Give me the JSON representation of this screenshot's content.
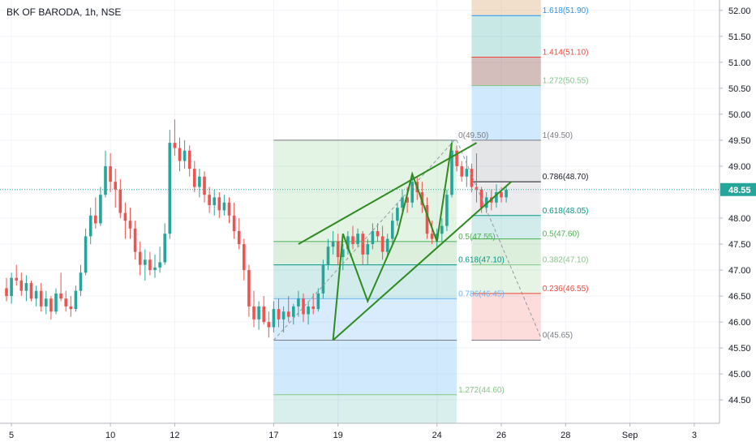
{
  "header": {
    "symbol_title": "BK OF BARODA, 1h, NSE"
  },
  "chart_data": {
    "type": "candlestick",
    "title": "BK OF BARODA, 1h, NSE",
    "y_axis": {
      "ylim": [
        44.05,
        52.2
      ],
      "ticks": [
        "52.00",
        "51.50",
        "51.00",
        "50.50",
        "50.00",
        "49.50",
        "49.00",
        "48.50",
        "48.00",
        "47.50",
        "47.00",
        "46.50",
        "46.00",
        "45.50",
        "45.00",
        "44.50"
      ],
      "current_price": "48.55",
      "current_price_color": "#26a69a"
    },
    "x_axis": {
      "xlim": [
        0,
        148
      ],
      "ticks": [
        {
          "label": "5",
          "x": 1
        },
        {
          "label": "10",
          "x": 21
        },
        {
          "label": "12",
          "x": 34
        },
        {
          "label": "17",
          "x": 54
        },
        {
          "label": "19",
          "x": 67
        },
        {
          "label": "24",
          "x": 87
        },
        {
          "label": "26",
          "x": 100
        },
        {
          "label": "28",
          "x": 113
        },
        {
          "label": "Sep",
          "x": 126
        },
        {
          "label": "3",
          "x": 139
        }
      ]
    },
    "colors": {
      "up": "#26a69a",
      "down": "#ef5350",
      "pattern": "#2e8b1f"
    },
    "candles": [
      [
        0,
        46.65,
        46.85,
        46.4,
        46.5
      ],
      [
        1,
        46.5,
        46.95,
        46.35,
        46.85
      ],
      [
        2,
        46.85,
        47.1,
        46.7,
        46.8
      ],
      [
        3,
        46.8,
        46.95,
        46.5,
        46.6
      ],
      [
        4,
        46.6,
        46.9,
        46.4,
        46.75
      ],
      [
        5,
        46.75,
        46.8,
        46.4,
        46.45
      ],
      [
        6,
        46.45,
        46.7,
        46.3,
        46.6
      ],
      [
        7,
        46.6,
        46.75,
        46.2,
        46.3
      ],
      [
        8,
        46.3,
        46.6,
        46.15,
        46.45
      ],
      [
        9,
        46.45,
        46.5,
        46.05,
        46.2
      ],
      [
        10,
        46.2,
        46.65,
        46.15,
        46.55
      ],
      [
        11,
        46.55,
        46.95,
        46.4,
        46.45
      ],
      [
        12,
        46.45,
        46.6,
        46.2,
        46.3
      ],
      [
        13,
        46.3,
        46.5,
        46.1,
        46.25
      ],
      [
        14,
        46.25,
        46.7,
        46.2,
        46.6
      ],
      [
        15,
        46.6,
        47.1,
        46.5,
        46.95
      ],
      [
        16,
        46.95,
        47.8,
        46.9,
        47.65
      ],
      [
        17,
        47.65,
        48.2,
        47.5,
        48.05
      ],
      [
        18,
        48.05,
        48.4,
        47.8,
        47.9
      ],
      [
        19,
        47.9,
        48.6,
        47.85,
        48.45
      ],
      [
        20,
        48.45,
        49.3,
        48.4,
        49.0
      ],
      [
        21,
        49.0,
        49.25,
        48.5,
        48.7
      ],
      [
        22,
        48.7,
        48.95,
        48.2,
        48.55
      ],
      [
        23,
        48.55,
        48.75,
        48.0,
        48.1
      ],
      [
        24,
        48.1,
        48.3,
        47.6,
        47.95
      ],
      [
        25,
        47.95,
        48.2,
        47.6,
        47.8
      ],
      [
        26,
        47.8,
        47.95,
        47.2,
        47.35
      ],
      [
        27,
        47.35,
        47.55,
        46.9,
        47.1
      ],
      [
        28,
        47.1,
        47.4,
        46.8,
        47.2
      ],
      [
        29,
        47.2,
        47.35,
        46.9,
        47.0
      ],
      [
        30,
        47.0,
        47.3,
        46.85,
        47.05
      ],
      [
        31,
        47.05,
        47.45,
        46.95,
        47.15
      ],
      [
        32,
        47.15,
        47.9,
        47.1,
        47.7
      ],
      [
        33,
        47.7,
        49.7,
        47.6,
        49.45
      ],
      [
        34,
        49.45,
        49.9,
        49.2,
        49.35
      ],
      [
        35,
        49.35,
        49.55,
        48.9,
        49.1
      ],
      [
        36,
        49.1,
        49.5,
        48.95,
        49.3
      ],
      [
        37,
        49.3,
        49.4,
        48.8,
        48.95
      ],
      [
        38,
        48.95,
        49.1,
        48.5,
        48.6
      ],
      [
        39,
        48.6,
        48.95,
        48.4,
        48.8
      ],
      [
        40,
        48.8,
        48.9,
        48.3,
        48.45
      ],
      [
        41,
        48.45,
        48.6,
        48.1,
        48.25
      ],
      [
        42,
        48.25,
        48.55,
        48.05,
        48.4
      ],
      [
        43,
        48.4,
        48.5,
        48.0,
        48.15
      ],
      [
        44,
        48.15,
        48.45,
        48.05,
        48.3
      ],
      [
        45,
        48.3,
        48.4,
        47.9,
        48.05
      ],
      [
        46,
        48.05,
        48.3,
        47.6,
        47.75
      ],
      [
        47,
        47.75,
        48.0,
        47.4,
        47.5
      ],
      [
        48,
        47.5,
        47.6,
        46.8,
        47.0
      ],
      [
        49,
        47.0,
        47.1,
        46.1,
        46.3
      ],
      [
        50,
        46.3,
        46.6,
        45.9,
        46.05
      ],
      [
        51,
        46.05,
        46.4,
        45.85,
        46.3
      ],
      [
        52,
        46.3,
        46.5,
        45.95,
        46.0
      ],
      [
        53,
        46.0,
        46.2,
        45.7,
        45.9
      ],
      [
        54,
        45.9,
        46.4,
        45.8,
        46.25
      ],
      [
        55,
        46.25,
        46.45,
        45.9,
        46.05
      ],
      [
        56,
        46.05,
        46.3,
        45.8,
        46.2
      ],
      [
        57,
        46.2,
        46.5,
        46.0,
        46.1
      ],
      [
        58,
        46.1,
        46.35,
        45.95,
        46.3
      ],
      [
        59,
        46.3,
        46.6,
        46.1,
        46.45
      ],
      [
        60,
        46.45,
        46.55,
        46.0,
        46.15
      ],
      [
        61,
        46.15,
        46.4,
        45.95,
        46.3
      ],
      [
        62,
        46.3,
        46.55,
        46.15,
        46.25
      ],
      [
        63,
        46.25,
        46.65,
        46.2,
        46.55
      ],
      [
        64,
        46.55,
        47.2,
        46.45,
        47.1
      ],
      [
        65,
        47.1,
        47.6,
        47.0,
        47.45
      ],
      [
        66,
        47.45,
        47.75,
        47.3,
        47.55
      ],
      [
        67,
        47.55,
        47.7,
        47.1,
        47.25
      ],
      [
        68,
        47.25,
        47.5,
        47.0,
        47.4
      ],
      [
        69,
        47.4,
        47.75,
        47.3,
        47.65
      ],
      [
        70,
        47.65,
        47.85,
        47.4,
        47.5
      ],
      [
        71,
        47.5,
        47.8,
        47.45,
        47.7
      ],
      [
        72,
        47.7,
        47.75,
        47.1,
        47.3
      ],
      [
        73,
        47.3,
        47.6,
        47.1,
        47.5
      ],
      [
        74,
        47.5,
        47.9,
        47.4,
        47.75
      ],
      [
        75,
        47.75,
        47.9,
        47.55,
        47.65
      ],
      [
        76,
        47.65,
        47.85,
        47.2,
        47.35
      ],
      [
        77,
        47.35,
        47.7,
        47.25,
        47.6
      ],
      [
        78,
        47.6,
        48.1,
        47.5,
        47.95
      ],
      [
        79,
        47.95,
        48.3,
        47.85,
        48.2
      ],
      [
        80,
        48.2,
        48.55,
        48.05,
        48.4
      ],
      [
        81,
        48.4,
        48.6,
        48.1,
        48.3
      ],
      [
        82,
        48.3,
        48.85,
        48.2,
        48.7
      ],
      [
        83,
        48.7,
        48.8,
        48.35,
        48.5
      ],
      [
        84,
        48.5,
        48.7,
        48.1,
        48.25
      ],
      [
        85,
        48.25,
        48.4,
        47.6,
        47.7
      ],
      [
        86,
        47.7,
        47.95,
        47.5,
        47.6
      ],
      [
        87,
        47.6,
        47.8,
        47.45,
        47.7
      ],
      [
        88,
        47.7,
        48.0,
        47.55,
        47.85
      ],
      [
        89,
        47.85,
        48.55,
        47.75,
        48.45
      ],
      [
        90,
        48.45,
        49.5,
        48.4,
        49.3
      ],
      [
        91,
        49.3,
        49.4,
        48.9,
        49.0
      ],
      [
        92,
        49.0,
        49.1,
        48.7,
        48.8
      ],
      [
        93,
        48.8,
        49.2,
        48.6,
        48.95
      ],
      [
        94,
        48.95,
        49.05,
        48.5,
        48.6
      ],
      [
        95,
        48.6,
        49.25,
        48.3,
        48.55
      ],
      [
        96,
        48.55,
        48.6,
        48.1,
        48.2
      ],
      [
        97,
        48.2,
        48.5,
        48.1,
        48.4
      ],
      [
        98,
        48.4,
        48.55,
        48.15,
        48.3
      ],
      [
        99,
        48.3,
        48.65,
        48.2,
        48.5
      ],
      [
        100,
        48.5,
        48.6,
        48.3,
        48.4
      ],
      [
        101,
        48.4,
        48.6,
        48.3,
        48.55
      ]
    ],
    "fib_retracements": [
      {
        "name": "left",
        "x_range": [
          54,
          91
        ],
        "levels": [
          {
            "ratio": "0",
            "price": 49.5,
            "label": "0(49.50)",
            "color": "#787b86"
          },
          {
            "ratio": "0.5",
            "price": 47.55,
            "label": "0.5(47.55)",
            "color": "#4caf50"
          },
          {
            "ratio": "0.618",
            "price": 47.1,
            "label": "0.618(47.10)",
            "color": "#009688"
          },
          {
            "ratio": "0.786",
            "price": 46.45,
            "label": "0.786(46.45)",
            "color": "#64b5f6"
          },
          {
            "ratio": "1",
            "price": 45.65,
            "label": "",
            "color": "#787b86"
          },
          {
            "ratio": "1.272",
            "price": 44.6,
            "label": "1.272(44.60)",
            "color": "#81c784"
          }
        ],
        "fills": [
          {
            "from": 49.5,
            "to": 47.55,
            "color": "rgba(129,199,132,0.22)"
          },
          {
            "from": 47.55,
            "to": 47.1,
            "color": "rgba(76,175,80,0.20)"
          },
          {
            "from": 47.1,
            "to": 46.45,
            "color": "rgba(0,150,136,0.18)"
          },
          {
            "from": 46.45,
            "to": 45.65,
            "color": "rgba(100,181,246,0.25)"
          },
          {
            "from": 45.65,
            "to": 44.6,
            "color": "rgba(100,181,246,0.30)"
          },
          {
            "from": 44.6,
            "to": 44.05,
            "color": "rgba(0,150,136,0.15)"
          }
        ]
      },
      {
        "name": "right",
        "x_range": [
          94,
          108
        ],
        "levels": [
          {
            "ratio": "1.618",
            "price": 51.9,
            "label": "1.618(51.90)",
            "color": "#2196f3"
          },
          {
            "ratio": "1.414",
            "price": 51.1,
            "label": "1.414(51.10)",
            "color": "#f44336"
          },
          {
            "ratio": "1.272",
            "price": 50.55,
            "label": "1.272(50.55)",
            "color": "#81c784"
          },
          {
            "ratio": "1",
            "price": 49.5,
            "label": "1(49.50)",
            "color": "#787b86"
          },
          {
            "ratio": "0.786",
            "price": 48.7,
            "label": "0.786(48.70)",
            "color": "#131722"
          },
          {
            "ratio": "0.618",
            "price": 48.05,
            "label": "0.618(48.05)",
            "color": "#009688"
          },
          {
            "ratio": "0.5",
            "price": 47.6,
            "label": "0.5(47.60)",
            "color": "#4caf50"
          },
          {
            "ratio": "0.382",
            "price": 47.1,
            "label": "0.382(47.10)",
            "color": "#81c784"
          },
          {
            "ratio": "0.236",
            "price": 46.55,
            "label": "0.236(46.55)",
            "color": "#f44336"
          },
          {
            "ratio": "0",
            "price": 45.65,
            "label": "0(45.65)",
            "color": "#787b86"
          }
        ],
        "fills": [
          {
            "from": 52.2,
            "to": 51.9,
            "color": "rgba(224,182,140,0.45)"
          },
          {
            "from": 51.9,
            "to": 51.1,
            "color": "rgba(0,150,136,0.22)"
          },
          {
            "from": 51.1,
            "to": 50.55,
            "color": "rgba(128,70,60,0.35)"
          },
          {
            "from": 50.55,
            "to": 49.5,
            "color": "rgba(100,181,246,0.30)"
          },
          {
            "from": 49.5,
            "to": 48.7,
            "color": "rgba(120,123,134,0.20)"
          },
          {
            "from": 48.7,
            "to": 48.05,
            "color": "rgba(120,123,134,0.14)"
          },
          {
            "from": 48.05,
            "to": 47.6,
            "color": "rgba(0,150,136,0.18)"
          },
          {
            "from": 47.6,
            "to": 47.1,
            "color": "rgba(76,175,80,0.20)"
          },
          {
            "from": 47.1,
            "to": 46.55,
            "color": "rgba(129,199,132,0.20)"
          },
          {
            "from": 46.55,
            "to": 45.65,
            "color": "rgba(244,67,54,0.18)"
          }
        ]
      }
    ],
    "channel_lines": [
      [
        [
          59,
          47.5
        ],
        [
          95,
          49.45
        ]
      ],
      [
        [
          66,
          45.65
        ],
        [
          102,
          48.7
        ]
      ]
    ],
    "wave_line": [
      [
        66,
        45.65
      ],
      [
        68,
        47.7
      ],
      [
        73,
        46.4
      ],
      [
        79,
        47.7
      ],
      [
        82,
        48.85
      ],
      [
        87,
        47.55
      ],
      [
        90,
        49.45
      ]
    ],
    "dashed_lines": [
      [
        [
          54,
          45.65
        ],
        [
          91,
          49.55
        ]
      ],
      [
        [
          91,
          49.5
        ],
        [
          108,
          45.7
        ]
      ]
    ]
  }
}
